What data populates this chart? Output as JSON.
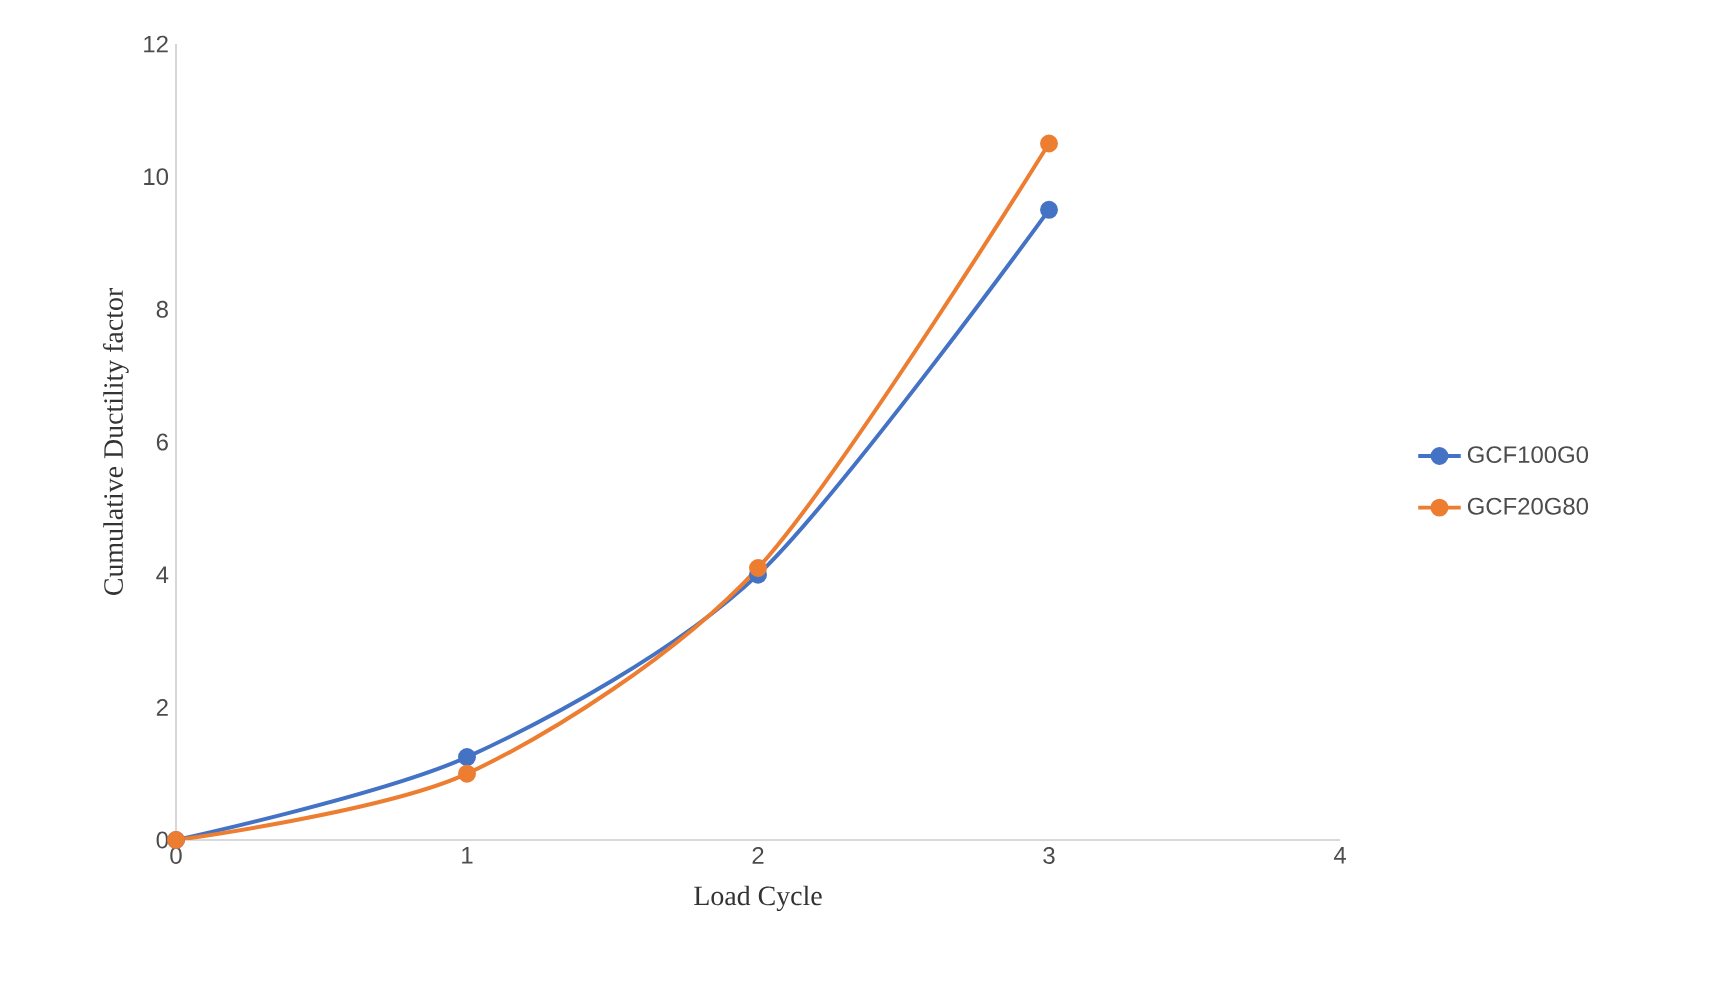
{
  "chart_data": {
    "type": "line",
    "xlabel": "Load Cycle",
    "ylabel": "Cumulative Ductility factor",
    "x": [
      0,
      1,
      2,
      3
    ],
    "series": [
      {
        "name": "GCF100G0",
        "color": "#4472c4",
        "values": [
          0,
          1.25,
          4.0,
          9.5
        ]
      },
      {
        "name": "GCF20G80",
        "color": "#ed7d31",
        "values": [
          0,
          1.0,
          4.1,
          10.5
        ]
      }
    ],
    "xlim": [
      0,
      4
    ],
    "xticks": [
      0,
      1,
      2,
      3,
      4
    ],
    "ylim": [
      0,
      12
    ],
    "yticks": [
      0,
      2,
      4,
      6,
      8,
      10,
      12
    ],
    "grid": false,
    "legend": "right",
    "marker": "circle",
    "line_style": "solid"
  }
}
